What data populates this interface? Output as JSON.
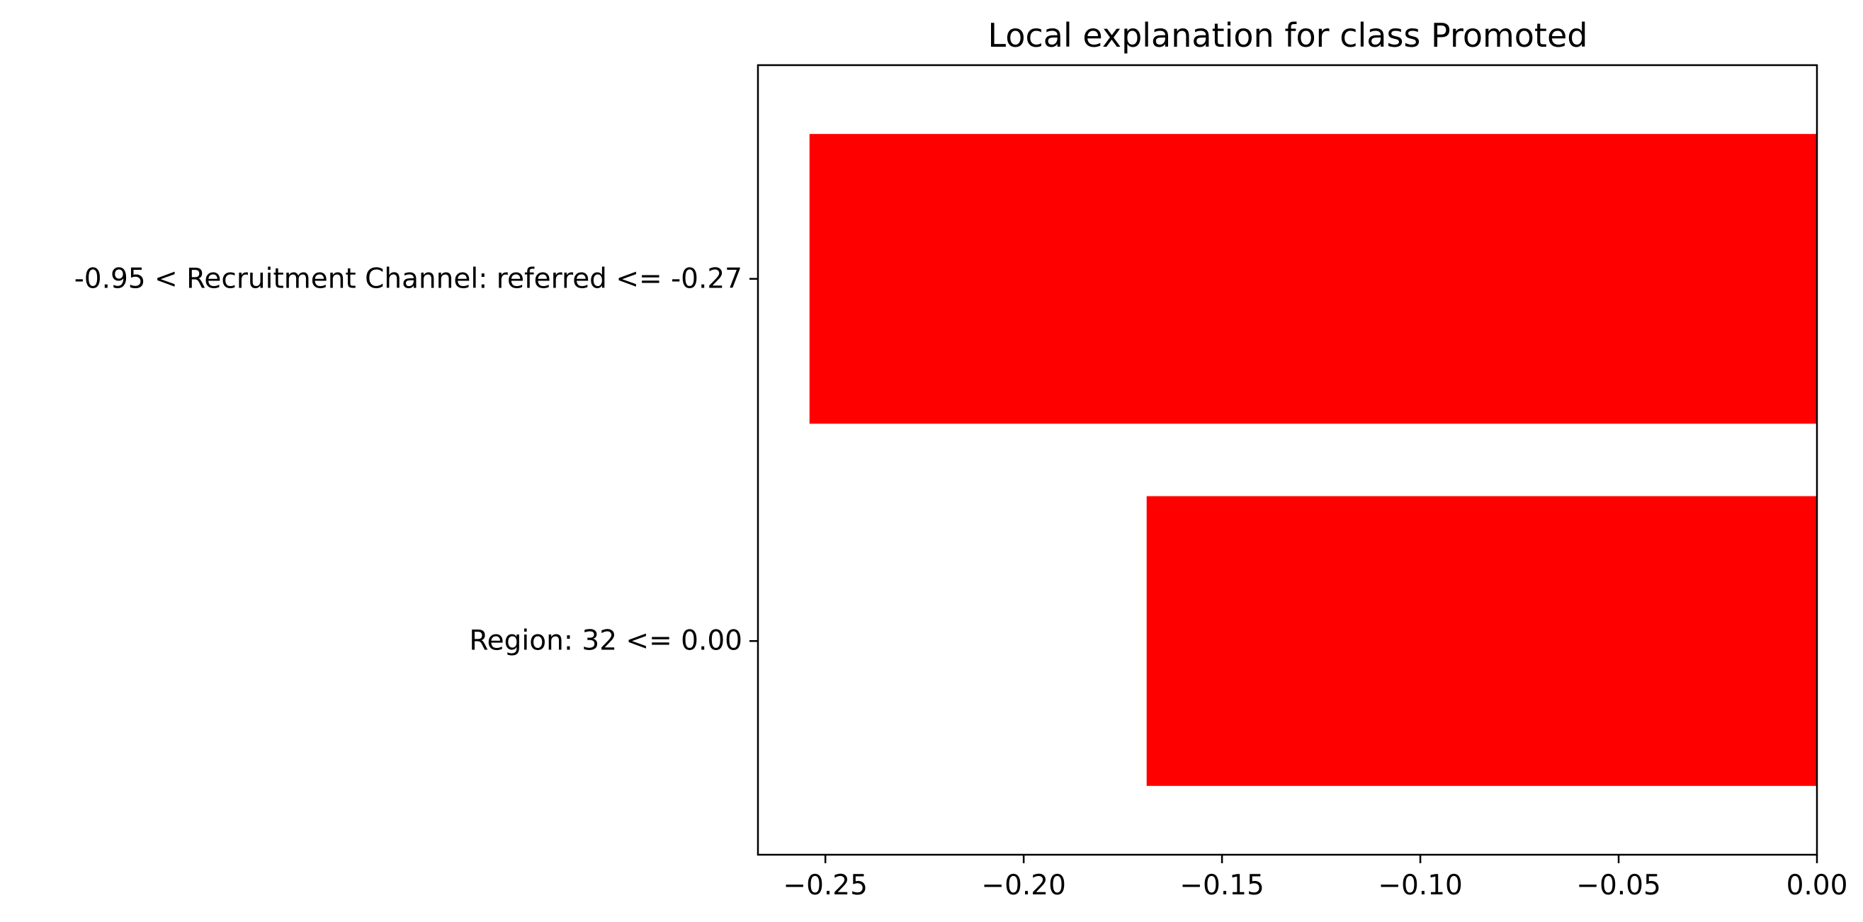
{
  "chart_data": {
    "type": "bar",
    "orientation": "horizontal",
    "title": "Local explanation for class Promoted",
    "xlabel": "",
    "ylabel": "",
    "categories": [
      "-0.95 < Recruitment Channel: referred <= -0.27",
      "Region: 32 <= 0.00"
    ],
    "values": [
      -0.254,
      -0.169
    ],
    "xlim": [
      -0.267,
      0.0
    ],
    "xticks": [
      -0.25,
      -0.2,
      -0.15,
      -0.1,
      -0.05,
      0.0
    ],
    "xtick_labels": [
      "−0.25",
      "−0.20",
      "−0.15",
      "−0.10",
      "−0.05",
      "0.00"
    ],
    "bar_color": "#ff0000",
    "grid": false,
    "legend": "none"
  }
}
